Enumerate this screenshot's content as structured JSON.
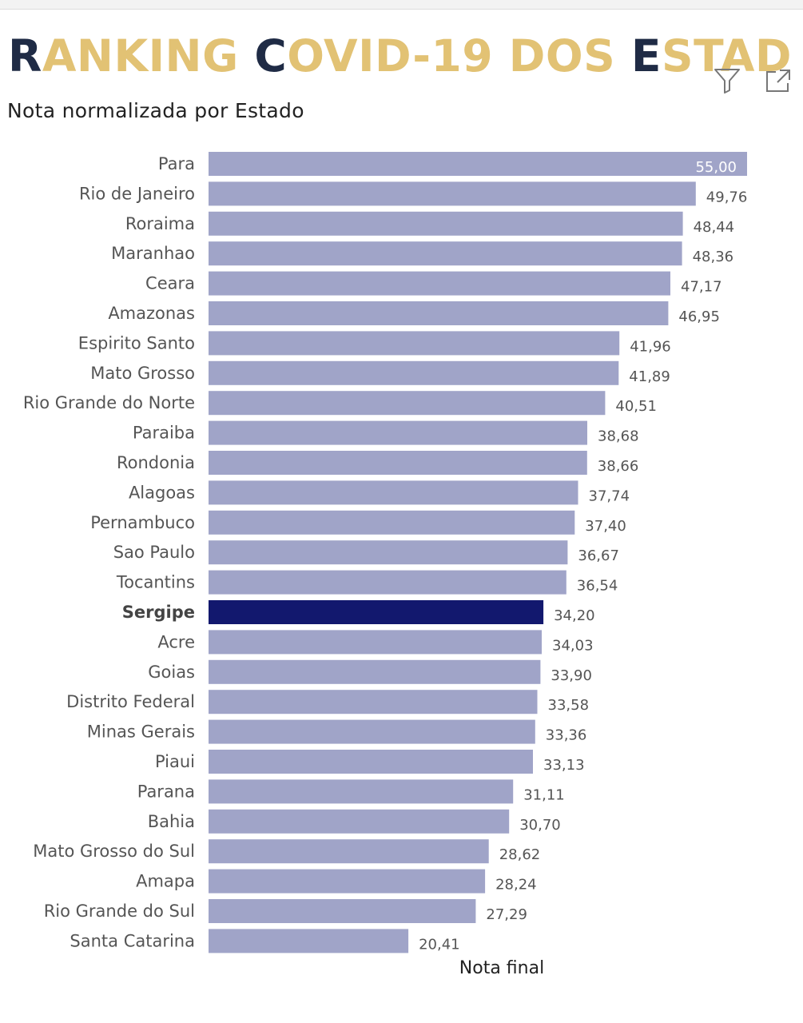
{
  "banner": {
    "segments": [
      {
        "text": "R",
        "dark": true
      },
      {
        "text": "ANKING ",
        "dark": false
      },
      {
        "text": "C",
        "dark": true
      },
      {
        "text": "OVID-19 DOS ",
        "dark": false
      },
      {
        "text": "E",
        "dark": true
      },
      {
        "text": "STADOS",
        "dark": false
      }
    ]
  },
  "toolbar": {
    "filter_icon": "filter-icon",
    "focus_icon": "focus-mode-icon"
  },
  "colors": {
    "banner_gold": "#e2c274",
    "banner_navy": "#1f2b45",
    "bar_default": "#a0a4c8",
    "bar_highlight": "#12186e"
  },
  "chart_data": {
    "type": "bar",
    "orientation": "horizontal",
    "title": "Nota normalizada por Estado",
    "xlabel": "Nota final",
    "ylabel": "",
    "xlim": [
      0,
      55
    ],
    "grid": false,
    "highlight": "Sergipe",
    "categories": [
      "Para",
      "Rio de Janeiro",
      "Roraima",
      "Maranhao",
      "Ceara",
      "Amazonas",
      "Espirito Santo",
      "Mato Grosso",
      "Rio Grande do Norte",
      "Paraiba",
      "Rondonia",
      "Alagoas",
      "Pernambuco",
      "Sao Paulo",
      "Tocantins",
      "Sergipe",
      "Acre",
      "Goias",
      "Distrito Federal",
      "Minas Gerais",
      "Piaui",
      "Parana",
      "Bahia",
      "Mato Grosso do Sul",
      "Amapa",
      "Rio Grande do Sul",
      "Santa Catarina"
    ],
    "values": [
      55.0,
      49.76,
      48.44,
      48.36,
      47.17,
      46.95,
      41.96,
      41.89,
      40.51,
      38.68,
      38.66,
      37.74,
      37.4,
      36.67,
      36.54,
      34.2,
      34.03,
      33.9,
      33.58,
      33.36,
      33.13,
      31.11,
      30.7,
      28.62,
      28.24,
      27.29,
      20.41
    ],
    "value_labels": [
      "55,00",
      "49,76",
      "48,44",
      "48,36",
      "47,17",
      "46,95",
      "41,96",
      "41,89",
      "40,51",
      "38,68",
      "38,66",
      "37,74",
      "37,40",
      "36,67",
      "36,54",
      "34,20",
      "34,03",
      "33,90",
      "33,58",
      "33,36",
      "33,13",
      "31,11",
      "30,70",
      "28,62",
      "28,24",
      "27,29",
      "20,41"
    ]
  }
}
